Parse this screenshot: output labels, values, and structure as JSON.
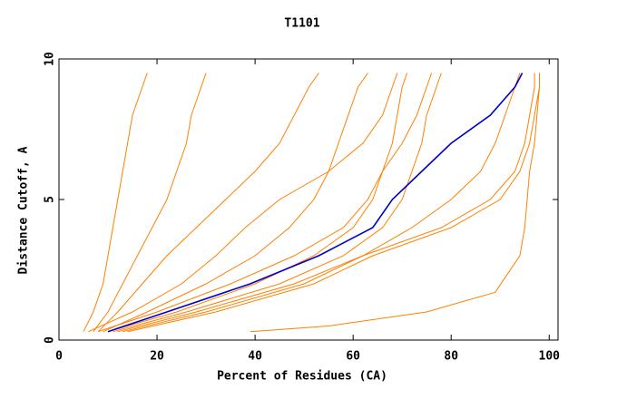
{
  "chart_data": {
    "type": "line",
    "title": "T1101",
    "xlabel": "Percent of Residues (CA)",
    "ylabel": "Distance Cutoff, A",
    "xlim": [
      0,
      101.8
    ],
    "ylim": [
      0,
      10
    ],
    "xticks": [
      0,
      20,
      40,
      60,
      80,
      100
    ],
    "yticks": [
      0,
      5,
      10
    ],
    "series": [
      {
        "color": "#ff8000",
        "x": [
          5,
          7,
          9,
          10,
          11,
          12,
          13,
          14,
          15,
          17,
          18
        ],
        "values": [
          0.3,
          1,
          2,
          3,
          4,
          5,
          6,
          7,
          8,
          9,
          9.5
        ]
      },
      {
        "color": "#ff8000",
        "x": [
          7,
          10,
          13,
          16,
          19,
          22,
          24,
          26,
          27,
          29,
          30
        ],
        "values": [
          0.3,
          1,
          2,
          3,
          4,
          5,
          6,
          7,
          8,
          9,
          9.5
        ]
      },
      {
        "color": "#ff8000",
        "x": [
          8,
          12,
          17,
          22,
          28,
          34,
          40,
          45,
          48,
          51,
          53
        ],
        "values": [
          0.3,
          1,
          2,
          3,
          4,
          5,
          6,
          7,
          8,
          9,
          9.5
        ]
      },
      {
        "color": "#ff8000",
        "x": [
          9,
          18,
          30,
          40,
          47,
          52,
          55,
          57,
          59,
          61,
          63
        ],
        "values": [
          0.3,
          1,
          2,
          3,
          4,
          5,
          6,
          7,
          8,
          9,
          9.5
        ]
      },
      {
        "color": "#ff8000",
        "x": [
          10,
          24,
          40,
          52,
          60,
          64,
          66,
          68,
          69,
          70,
          71
        ],
        "values": [
          0.3,
          1,
          2,
          3,
          4,
          5,
          6,
          7,
          8,
          9,
          9.5
        ]
      },
      {
        "color": "#ff8000",
        "x": [
          11,
          26,
          45,
          58,
          66,
          70,
          72,
          74,
          75,
          77,
          78
        ],
        "values": [
          0.3,
          1,
          2,
          3,
          4,
          5,
          6,
          7,
          8,
          9,
          9.5
        ]
      },
      {
        "color": "#ff8000",
        "x": [
          12,
          28,
          48,
          62,
          72,
          80,
          86,
          89,
          91,
          93,
          94
        ],
        "values": [
          0.3,
          1,
          2,
          3,
          4,
          5,
          6,
          7,
          8,
          9,
          9.5
        ]
      },
      {
        "color": "#ff8000",
        "x": [
          13,
          30,
          50,
          62,
          78,
          88,
          93,
          95,
          96,
          97,
          97
        ],
        "values": [
          0.3,
          1,
          2,
          3,
          4,
          5,
          6,
          7,
          8,
          9,
          9.5
        ]
      },
      {
        "color": "#ff8000",
        "x": [
          14,
          32,
          52,
          64,
          80,
          90,
          94,
          96,
          97,
          98,
          98
        ],
        "values": [
          0.3,
          1,
          2,
          3,
          4,
          5,
          6,
          7,
          8,
          9,
          9.5
        ]
      },
      {
        "color": "#ff8000",
        "x": [
          39,
          55,
          75,
          89,
          94,
          95,
          95.5,
          96,
          97,
          97.5,
          98,
          98
        ],
        "values": [
          0.3,
          0.5,
          1,
          1.7,
          3,
          4,
          5,
          6,
          7,
          8,
          9,
          9.5
        ]
      },
      {
        "color": "#ff8000",
        "x": [
          6,
          15,
          25,
          32,
          38,
          45,
          55,
          62,
          66,
          68,
          69
        ],
        "values": [
          0.3,
          1,
          2,
          3,
          4,
          5,
          6,
          7,
          8,
          9,
          9.5
        ]
      },
      {
        "color": "#ff8000",
        "x": [
          8,
          20,
          35,
          48,
          58,
          63,
          66,
          70,
          73,
          75,
          76
        ],
        "values": [
          0.3,
          1,
          2,
          3,
          4,
          5,
          6,
          7,
          8,
          9,
          9.5
        ]
      },
      {
        "color": "#0000cc",
        "x": [
          10,
          22,
          39,
          53,
          64,
          68,
          74,
          80,
          88,
          93,
          94.5
        ],
        "values": [
          0.3,
          1,
          2,
          3,
          4,
          5,
          6,
          7,
          8,
          9,
          9.5
        ]
      }
    ]
  }
}
